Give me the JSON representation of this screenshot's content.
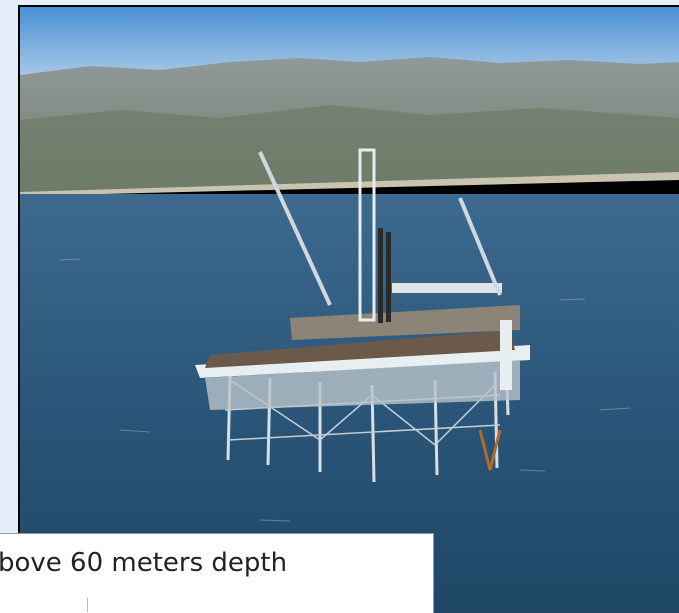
{
  "caption": {
    "text": "bove 60 meters depth"
  }
}
